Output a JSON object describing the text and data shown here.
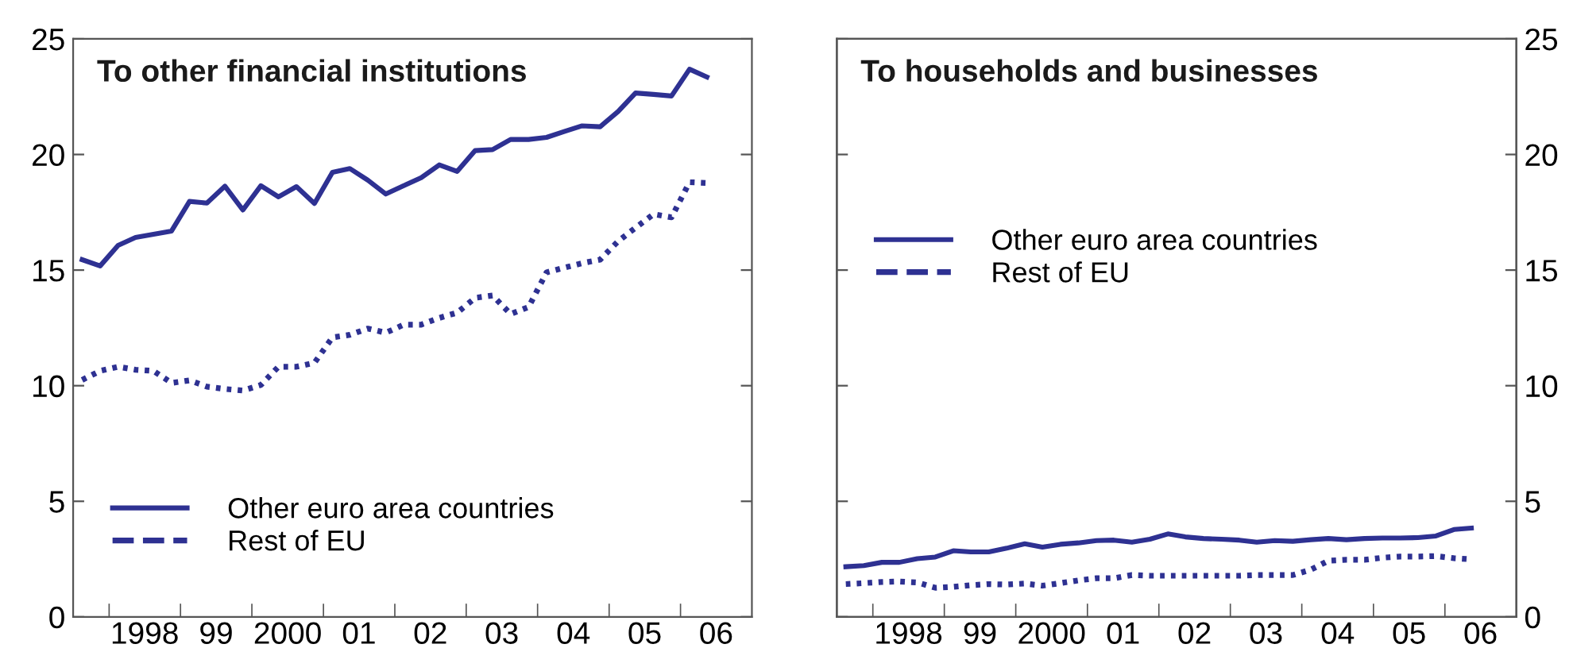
{
  "chart_data": [
    {
      "type": "line",
      "title": "To other financial institutions",
      "legend": "bottom left",
      "x": [
        "1997-08-16",
        "1997-11-16",
        "1998-02-16",
        "1998-05-16",
        "1998-08-16",
        "1998-11-16",
        "1999-02-16",
        "1999-05-16",
        "1999-08-16",
        "1999-11-16",
        "2000-02-16",
        "2000-05-16",
        "2000-08-16",
        "2000-11-16",
        "2001-02-16",
        "2001-05-16",
        "2001-08-16",
        "2001-11-16",
        "2002-02-16",
        "2002-05-16",
        "2002-08-16",
        "2002-11-16",
        "2003-02-16",
        "2003-05-16",
        "2003-08-16",
        "2003-11-16",
        "2004-02-16",
        "2004-05-16",
        "2004-08-16",
        "2004-11-16",
        "2005-02-16",
        "2005-05-16",
        "2005-08-16",
        "2005-11-16",
        "2006-02-16",
        "2006-05-16"
      ],
      "xlim": [
        "1997-07-01",
        "2007-01-01"
      ],
      "ylim": [
        0,
        25
      ],
      "yticks": [
        0,
        5,
        10,
        15,
        20,
        25
      ],
      "xticks": [
        {
          "value": "1998-01-01",
          "label": null
        },
        {
          "value": "1999-01-01",
          "label": null
        },
        {
          "value": "2000-01-01",
          "label": null
        },
        {
          "value": "2001-01-01",
          "label": null
        },
        {
          "value": "2002-01-01",
          "label": null
        },
        {
          "value": "2003-01-01",
          "label": null
        },
        {
          "value": "2004-01-01",
          "label": null
        },
        {
          "value": "2005-01-01",
          "label": null
        },
        {
          "value": "2006-01-01",
          "label": null
        },
        {
          "value": "1998-07-02",
          "label": "1998"
        },
        {
          "value": "1999-07-02",
          "label": "99"
        },
        {
          "value": "2000-07-02",
          "label": "2000"
        },
        {
          "value": "2001-07-02",
          "label": "01"
        },
        {
          "value": "2002-07-02",
          "label": "02"
        },
        {
          "value": "2003-07-02",
          "label": "03"
        },
        {
          "value": "2004-07-02",
          "label": "04"
        },
        {
          "value": "2005-07-02",
          "label": "05"
        },
        {
          "value": "2006-07-02",
          "label": "06"
        }
      ],
      "series": [
        {
          "name": "Other euro area countries",
          "color": "#2e3192",
          "line_style": "solid",
          "values": [
            15.45,
            15.18,
            16.07,
            16.41,
            16.55,
            16.69,
            17.97,
            17.9,
            18.63,
            17.6,
            18.65,
            18.17,
            18.61,
            17.88,
            19.23,
            19.39,
            18.89,
            18.29,
            18.65,
            19.0,
            19.55,
            19.27,
            20.17,
            20.21,
            20.65,
            20.65,
            20.74,
            20.99,
            21.24,
            21.2,
            21.86,
            22.66,
            22.6,
            22.53,
            23.69,
            23.35
          ]
        },
        {
          "name": "Rest of EU",
          "color": "#2e3192",
          "line_style": "dotted",
          "values": [
            10.25,
            10.64,
            10.82,
            10.69,
            10.64,
            10.12,
            10.23,
            9.96,
            9.86,
            9.79,
            10.03,
            10.82,
            10.82,
            10.99,
            12.09,
            12.2,
            12.47,
            12.29,
            12.64,
            12.64,
            12.93,
            13.16,
            13.8,
            13.9,
            13.1,
            13.4,
            14.9,
            15.1,
            15.3,
            15.45,
            16.25,
            16.83,
            17.42,
            17.28,
            18.8,
            18.77
          ]
        }
      ]
    },
    {
      "type": "line",
      "title": "To households and businesses",
      "legend": "left",
      "x": [
        "1997-08-16",
        "1997-11-16",
        "1998-02-16",
        "1998-05-16",
        "1998-08-16",
        "1998-11-16",
        "1999-02-16",
        "1999-05-16",
        "1999-08-16",
        "1999-11-16",
        "2000-02-16",
        "2000-05-16",
        "2000-08-16",
        "2000-11-16",
        "2001-02-16",
        "2001-05-16",
        "2001-08-16",
        "2001-11-16",
        "2002-02-16",
        "2002-05-16",
        "2002-08-16",
        "2002-11-16",
        "2003-02-16",
        "2003-05-16",
        "2003-08-16",
        "2003-11-16",
        "2004-02-16",
        "2004-05-16",
        "2004-08-16",
        "2004-11-16",
        "2005-02-16",
        "2005-05-16",
        "2005-08-16",
        "2005-11-16",
        "2006-02-16",
        "2006-05-16"
      ],
      "xlim": [
        "1997-07-01",
        "2007-01-01"
      ],
      "y2lim": [
        0,
        25
      ],
      "y2ticks": [
        0,
        5,
        10,
        15,
        20,
        25
      ],
      "xticks": [
        {
          "value": "1998-01-01",
          "label": null
        },
        {
          "value": "1999-01-01",
          "label": null
        },
        {
          "value": "2000-01-01",
          "label": null
        },
        {
          "value": "2001-01-01",
          "label": null
        },
        {
          "value": "2002-01-01",
          "label": null
        },
        {
          "value": "2003-01-01",
          "label": null
        },
        {
          "value": "2004-01-01",
          "label": null
        },
        {
          "value": "2005-01-01",
          "label": null
        },
        {
          "value": "2006-01-01",
          "label": null
        },
        {
          "value": "1998-07-02",
          "label": "1998"
        },
        {
          "value": "1999-07-02",
          "label": "99"
        },
        {
          "value": "2000-07-02",
          "label": "2000"
        },
        {
          "value": "2001-07-02",
          "label": "01"
        },
        {
          "value": "2002-07-02",
          "label": "02"
        },
        {
          "value": "2003-07-02",
          "label": "03"
        },
        {
          "value": "2004-07-02",
          "label": "04"
        },
        {
          "value": "2005-07-02",
          "label": "05"
        },
        {
          "value": "2006-07-02",
          "label": "06"
        }
      ],
      "series": [
        {
          "name": "Other euro area countries",
          "color": "#2e3192",
          "line_style": "solid",
          "axis": "y2",
          "values": [
            2.17,
            2.22,
            2.36,
            2.36,
            2.52,
            2.59,
            2.86,
            2.81,
            2.81,
            2.97,
            3.16,
            3.02,
            3.14,
            3.2,
            3.3,
            3.32,
            3.23,
            3.36,
            3.59,
            3.46,
            3.39,
            3.36,
            3.32,
            3.23,
            3.3,
            3.27,
            3.34,
            3.39,
            3.34,
            3.39,
            3.41,
            3.41,
            3.43,
            3.5,
            3.78,
            3.84
          ]
        },
        {
          "name": "Rest of EU",
          "color": "#2e3192",
          "line_style": "dotted",
          "axis": "y2",
          "values": [
            1.42,
            1.46,
            1.51,
            1.53,
            1.49,
            1.26,
            1.3,
            1.37,
            1.42,
            1.4,
            1.44,
            1.35,
            1.46,
            1.58,
            1.67,
            1.67,
            1.81,
            1.78,
            1.78,
            1.78,
            1.78,
            1.78,
            1.78,
            1.81,
            1.81,
            1.81,
            2.04,
            2.43,
            2.47,
            2.47,
            2.56,
            2.61,
            2.61,
            2.63,
            2.54,
            2.49
          ]
        }
      ]
    }
  ]
}
